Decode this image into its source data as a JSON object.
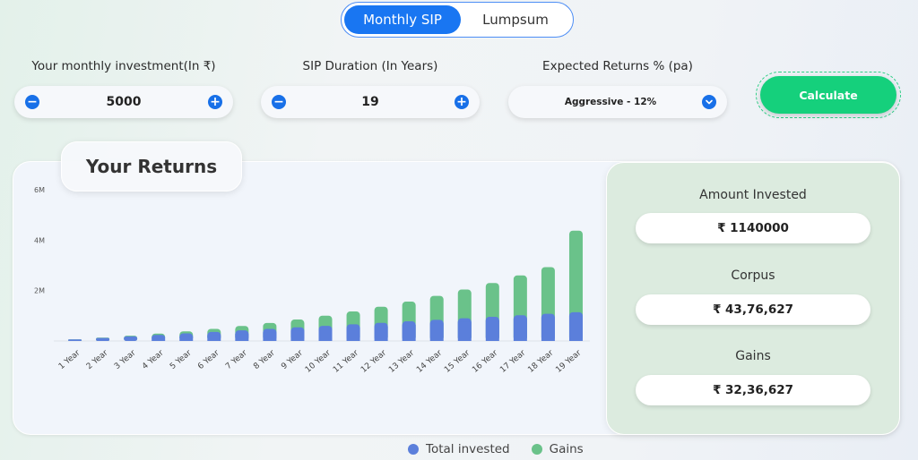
{
  "mode_toggle": {
    "monthly_sip": "Monthly SIP",
    "lumpsum": "Lumpsum",
    "active": "Monthly SIP"
  },
  "inputs": {
    "monthly_investment": {
      "label": "Your monthly investment(In ₹)",
      "value": "5000",
      "minus": "−",
      "plus": "+"
    },
    "sip_duration": {
      "label": "SIP Duration (In Years)",
      "value": "19",
      "minus": "−",
      "plus": "+"
    },
    "expected_returns": {
      "label": "Expected Returns % (pa)",
      "selected": "Aggressive - 12%"
    }
  },
  "calculate_button": "Calculate",
  "returns_title": "Your Returns",
  "summary": {
    "amount_invested_label": "Amount Invested",
    "amount_invested_value": "₹ 1140000",
    "corpus_label": "Corpus",
    "corpus_value": "₹ 43,76,627",
    "gains_label": "Gains",
    "gains_value": "₹ 32,36,627"
  },
  "legend": {
    "invested": "Total invested",
    "gains": "Gains"
  },
  "colors": {
    "invested": "#5b7fdb",
    "gains": "#6ac28a",
    "accent": "#1976f2",
    "calculate": "#15d07c"
  },
  "chart_data": {
    "type": "bar",
    "stacked": true,
    "categories": [
      "1 Year",
      "2 Year",
      "3 Year",
      "4 Year",
      "5 Year",
      "6 Year",
      "7 Year",
      "8 Year",
      "9 Year",
      "10 Year",
      "11 Year",
      "12 Year",
      "13 Year",
      "14 Year",
      "15 Year",
      "16 Year",
      "17 Year",
      "18 Year",
      "19 Year"
    ],
    "y_ticks": [
      "2M",
      "4M",
      "6M"
    ],
    "ylim": [
      0,
      6000000
    ],
    "series": [
      {
        "name": "Total invested",
        "values": [
          60000,
          120000,
          180000,
          240000,
          300000,
          360000,
          420000,
          480000,
          540000,
          600000,
          660000,
          720000,
          780000,
          840000,
          900000,
          960000,
          1020000,
          1080000,
          1140000
        ]
      },
      {
        "name": "Gains",
        "values": [
          3600,
          12000,
          28000,
          55000,
          82000,
          120000,
          175000,
          235000,
          310000,
          405000,
          510000,
          640000,
          780000,
          950000,
          1140000,
          1340000,
          1580000,
          1850000,
          3236627
        ]
      }
    ]
  }
}
